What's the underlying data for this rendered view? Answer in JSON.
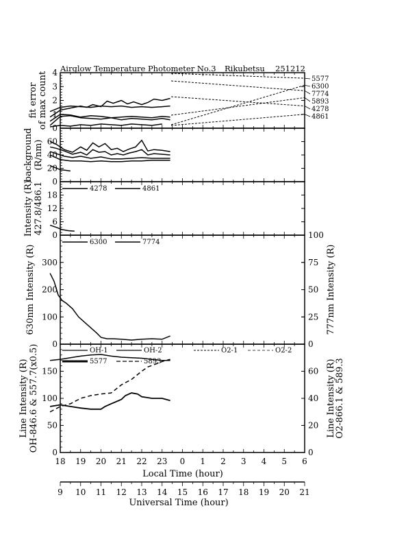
{
  "chart_data": {
    "type": "line",
    "title": "Airglow Temperature Photometer No.3",
    "station": "Rikubetsu",
    "date": "251212",
    "x_local": {
      "label": "Local Time (hour)",
      "ticks": [
        "18",
        "19",
        "20",
        "21",
        "22",
        "23",
        "0",
        "1",
        "2",
        "3",
        "4",
        "5",
        "6"
      ],
      "range_hours": [
        18,
        30
      ]
    },
    "x_ut": {
      "label": "Universal Time (hour)",
      "ticks": [
        "9",
        "10",
        "11",
        "12",
        "13",
        "14",
        "15",
        "16",
        "17",
        "18",
        "19",
        "20",
        "21"
      ]
    },
    "panels": [
      {
        "id": "fit-error",
        "ylabel": [
          "fit error",
          "of max count"
        ],
        "ylim": [
          0,
          4
        ],
        "yticks": [
          "0",
          "1",
          "2",
          "3",
          "4"
        ],
        "right_labels": [
          "5577",
          "6300",
          "7774",
          "5893",
          "4278",
          "4861"
        ],
        "right_label_values": [
          3.6,
          3.1,
          2.7,
          2.2,
          1.6,
          1.0
        ],
        "series": [
          {
            "x": [
              17.5,
              18.0,
              18.5,
              19.0,
              19.5,
              20.0,
              20.5,
              21.0,
              21.5,
              22.0,
              22.5,
              23.0,
              23.4
            ],
            "y": [
              1.2,
              1.5,
              1.6,
              1.55,
              1.5,
              1.6,
              1.55,
              1.6,
              1.5,
              1.55,
              1.5,
              1.55,
              1.6
            ]
          },
          {
            "x": [
              17.5,
              18.0,
              18.5,
              19.0,
              19.3,
              19.6,
              20.0,
              20.3,
              20.6,
              21.0,
              21.3,
              21.6,
              22.0,
              22.3,
              22.6,
              23.0,
              23.4
            ],
            "y": [
              0.8,
              1.3,
              1.45,
              1.6,
              1.5,
              1.7,
              1.55,
              1.95,
              1.8,
              2.0,
              1.75,
              1.9,
              1.7,
              1.85,
              2.1,
              2.0,
              2.15
            ]
          },
          {
            "x": [
              17.5,
              18.0,
              18.5,
              19.0,
              19.5,
              20.0,
              20.5,
              21.0,
              21.5,
              22.0,
              22.5,
              23.0,
              23.4
            ],
            "y": [
              0.5,
              1.0,
              0.95,
              0.8,
              0.9,
              0.85,
              0.75,
              0.8,
              0.85,
              0.8,
              0.75,
              0.85,
              0.8
            ]
          },
          {
            "x": [
              17.5,
              18.0,
              18.5,
              19.0,
              19.5,
              20.0,
              20.5,
              21.0,
              21.5,
              22.0,
              22.5,
              23.0,
              23.4
            ],
            "y": [
              0.2,
              0.85,
              0.9,
              0.75,
              0.7,
              0.65,
              0.75,
              0.6,
              0.7,
              0.65,
              0.6,
              0.7,
              0.6
            ]
          },
          {
            "x": [
              17.5,
              18.0,
              18.5,
              19.0,
              19.5,
              20.0,
              20.5,
              21.0,
              21.5,
              22.0,
              22.5,
              23.0
            ],
            "y": [
              0.1,
              0.2,
              0.15,
              0.25,
              0.2,
              0.3,
              0.25,
              0.2,
              0.3,
              0.25,
              0.2,
              0.3
            ]
          }
        ]
      },
      {
        "id": "background",
        "ylabel": [
          "background",
          "(R/nm)"
        ],
        "ylim": [
          0,
          80
        ],
        "yticks": [
          "0",
          "20",
          "40",
          "60"
        ],
        "series": [
          {
            "x": [
              17.5,
              17.8,
              18.2,
              18.6,
              19.0,
              19.3,
              19.6,
              19.9,
              20.2,
              20.5,
              20.8,
              21.1,
              21.4,
              21.7,
              22.0,
              22.3,
              22.6,
              23.0,
              23.4
            ],
            "y": [
              60,
              56,
              48,
              44,
              52,
              47,
              58,
              52,
              57,
              48,
              50,
              45,
              49,
              52,
              62,
              46,
              48,
              47,
              45
            ]
          },
          {
            "x": [
              17.5,
              17.8,
              18.2,
              18.6,
              19.0,
              19.3,
              19.6,
              19.9,
              20.2,
              20.5,
              20.8,
              21.1,
              21.4,
              21.7,
              22.0,
              22.3,
              22.6,
              23.0,
              23.4
            ],
            "y": [
              52,
              50,
              46,
              41,
              44,
              40,
              48,
              44,
              45,
              40,
              42,
              40,
              43,
              45,
              48,
              40,
              42,
              41,
              40
            ]
          },
          {
            "x": [
              17.5,
              17.8,
              18.2,
              18.6,
              19.0,
              19.5,
              20.0,
              20.5,
              21.0,
              21.5,
              22.0,
              22.5,
              23.0,
              23.4
            ],
            "y": [
              45,
              42,
              38,
              36,
              38,
              35,
              37,
              34,
              34,
              35,
              36,
              35,
              35,
              35
            ]
          },
          {
            "x": [
              17.5,
              18.0,
              18.5,
              19.0,
              19.5,
              20.0,
              20.5,
              21.0,
              21.5,
              22.0,
              22.5,
              23.0,
              23.4
            ],
            "y": [
              40,
              33,
              31,
              31,
              30,
              31,
              30,
              30,
              31,
              31,
              32,
              32,
              32
            ]
          },
          {
            "x": [
              17.5,
              18.0,
              18.5
            ],
            "y": [
              24,
              18,
              16
            ]
          }
        ]
      },
      {
        "id": "intensity-4278-4861",
        "ylabel": [
          "Intensity (R)",
          "427.8/486.1"
        ],
        "ylim": [
          0,
          24
        ],
        "yticks": [
          "0",
          "6",
          "12",
          "18"
        ],
        "legend": [
          "4278",
          "4861"
        ],
        "series": [
          {
            "x": [
              17.5,
              17.8,
              18.1,
              18.4,
              18.7
            ],
            "y": [
              4.5,
              3.5,
              2.5,
              2.0,
              1.8
            ]
          }
        ]
      },
      {
        "id": "intensity-6300-7774",
        "ylabel": [
          "630nm Intensity (R)"
        ],
        "ylabel_right": [
          "777nm Intensity (R)"
        ],
        "ylim": [
          0,
          400
        ],
        "ylim_right": [
          0,
          100
        ],
        "yticks": [
          "0",
          "100",
          "200",
          "300"
        ],
        "yticks_right": [
          "0",
          "25",
          "50",
          "75",
          "100"
        ],
        "legend": [
          "6300",
          "7774"
        ],
        "series": [
          {
            "x": [
              17.5,
              17.7,
              17.9,
              18.1,
              18.3,
              18.6,
              18.9,
              19.2,
              19.5,
              19.8,
              20.0,
              20.3,
              20.6,
              21.0,
              21.5,
              22.0,
              22.5,
              23.0,
              23.4
            ],
            "y": [
              260,
              230,
              180,
              160,
              150,
              130,
              100,
              80,
              60,
              40,
              25,
              20,
              20,
              18,
              15,
              18,
              20,
              18,
              30
            ]
          }
        ]
      },
      {
        "id": "line-intensity",
        "ylabel": [
          "Line Intensity (R)",
          "OH-846.6 & 557.7(x0.5)"
        ],
        "ylabel_right": [
          "Line Intensity (R)",
          "O2-866.1 & 589.3"
        ],
        "ylim": [
          0,
          200
        ],
        "ylim_right": [
          0,
          80
        ],
        "yticks": [
          "0",
          "50",
          "100",
          "150"
        ],
        "yticks_right": [
          "0",
          "20",
          "40",
          "60"
        ],
        "legend": [
          "OH-1",
          "OH-2",
          "O2-1",
          "O2-2",
          "5577",
          "5893"
        ],
        "series": [
          {
            "name": "OH-1",
            "x": [
              17.5,
              18.0,
              18.5,
              19.0,
              19.5,
              20.0,
              20.5,
              21.0,
              21.5,
              22.0,
              22.5,
              23.0,
              23.4
            ],
            "y": [
              170,
              172,
              175,
              178,
              180,
              181,
              178,
              176,
              175,
              174,
              172,
              170,
              170
            ]
          },
          {
            "name": "5577",
            "x": [
              17.5,
              18.0,
              18.5,
              19.0,
              19.5,
              20.0,
              20.2,
              20.5,
              21.0,
              21.2,
              21.5,
              21.8,
              22.0,
              22.5,
              23.0,
              23.4
            ],
            "y": [
              85,
              88,
              85,
              82,
              80,
              80,
              85,
              90,
              98,
              105,
              110,
              108,
              103,
              100,
              100,
              96
            ]
          },
          {
            "name": "5893",
            "x": [
              17.5,
              18.0,
              18.5,
              19.0,
              19.5,
              20.0,
              20.5,
              21.0,
              21.5,
              22.0,
              22.3,
              22.6,
              23.0,
              23.4
            ],
            "y": [
              75,
              85,
              90,
              100,
              105,
              108,
              110,
              125,
              135,
              150,
              158,
              162,
              168,
              172
            ]
          }
        ]
      }
    ]
  }
}
